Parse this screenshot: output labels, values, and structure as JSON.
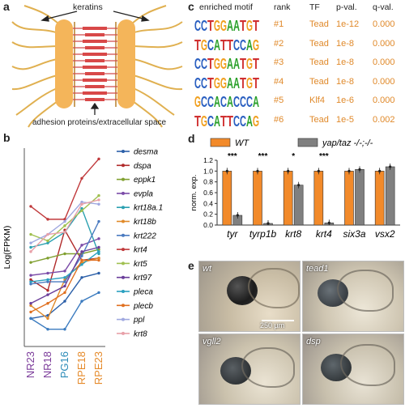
{
  "panels": {
    "a": "a",
    "b": "b",
    "c": "c",
    "d": "d",
    "e": "e"
  },
  "panel_a": {
    "keratins_label": "keratins",
    "adhesion_label": "adhesion proteins/extracellular space"
  },
  "panel_b": {
    "chart_data": {
      "type": "line",
      "ylabel": "Log(FPKM)",
      "xlabel": "",
      "categories": [
        "NR23",
        "NR18",
        "PG16",
        "RPE18",
        "RPE23"
      ],
      "category_colors": [
        "#7b3b9a",
        "#7b3b9a",
        "#2a8ab7",
        "#e58a2a",
        "#e58a2a"
      ],
      "ylim": [
        0,
        4.6
      ],
      "series": [
        {
          "name": "desma",
          "color": "#2b5fa8",
          "values": [
            0.65,
            0.72,
            1.05,
            1.6,
            1.7
          ]
        },
        {
          "name": "dspa",
          "color": "#b02a2a",
          "values": [
            1.55,
            1.3,
            2.7,
            2.0,
            2.05
          ]
        },
        {
          "name": "eppk1",
          "color": "#80a030",
          "values": [
            1.95,
            2.05,
            2.15,
            2.15,
            2.25
          ]
        },
        {
          "name": "evpla",
          "color": "#7b4ba8",
          "values": [
            1.65,
            1.7,
            1.75,
            2.35,
            2.5
          ]
        },
        {
          "name": "krt18a.1",
          "color": "#2aa0b0",
          "values": [
            2.3,
            2.4,
            2.65,
            3.2,
            2.15
          ]
        },
        {
          "name": "krt18b",
          "color": "#e08a2a",
          "values": [
            0.95,
            0.65,
            1.55,
            1.95,
            2.05
          ]
        },
        {
          "name": "krt222",
          "color": "#4a7ac0",
          "values": [
            1.45,
            1.5,
            1.5,
            2.1,
            2.9
          ]
        },
        {
          "name": "krt4",
          "color": "#c0393b",
          "values": [
            3.25,
            2.95,
            2.95,
            3.9,
            4.35
          ]
        },
        {
          "name": "krt5",
          "color": "#a0c050",
          "values": [
            2.6,
            2.45,
            2.8,
            3.15,
            3.5
          ]
        },
        {
          "name": "krt97",
          "color": "#6a3d9a",
          "values": [
            1.0,
            1.2,
            1.4,
            2.2,
            2.3
          ]
        },
        {
          "name": "pleca",
          "color": "#2aa0c0",
          "values": [
            1.5,
            1.55,
            1.6,
            1.9,
            2.2
          ]
        },
        {
          "name": "plecb",
          "color": "#e07020",
          "values": [
            0.8,
            1.0,
            1.25,
            2.0,
            2.0
          ]
        },
        {
          "name": "ppl",
          "color": "#a0a8e0",
          "values": [
            2.4,
            2.6,
            2.9,
            3.35,
            3.3
          ]
        },
        {
          "name": "krt8",
          "color": "#e8a0a8",
          "values": [
            2.2,
            2.6,
            2.65,
            3.3,
            3.4
          ]
        }
      ],
      "lower_lines": [
        {
          "color": "#3b7bbf",
          "values": [
            0.65,
            0.4,
            0.4,
            1.05,
            1.25
          ]
        }
      ]
    }
  },
  "panel_c": {
    "headers": {
      "motif": "enriched motif",
      "rank": "rank",
      "tf": "TF",
      "pval": "p-val.",
      "qval": "q-val."
    },
    "rows": [
      {
        "motif": "CCTGGAATGT",
        "rank": "#1",
        "tf": "Tead",
        "pval": "1e-12",
        "qval": "0.000"
      },
      {
        "motif": "TGCATTCCAG",
        "rank": "#2",
        "tf": "Tead",
        "pval": "1e-8",
        "qval": "0.000"
      },
      {
        "motif": "CCTGGAATGT",
        "rank": "#3",
        "tf": "Tead",
        "pval": "1e-8",
        "qval": "0.000"
      },
      {
        "motif": "CCTGGAATGT",
        "rank": "#4",
        "tf": "Tead",
        "pval": "1e-8",
        "qval": "0.000"
      },
      {
        "motif": "GCCACACCCA",
        "rank": "#5",
        "tf": "Klf4",
        "pval": "1e-6",
        "qval": "0.000"
      },
      {
        "motif": "TGCATTCCAG",
        "rank": "#6",
        "tf": "Tead",
        "pval": "1e-5",
        "qval": "0.002"
      }
    ],
    "value_color": "#e0892a"
  },
  "panel_d": {
    "chart_data": {
      "type": "bar",
      "ylabel": "norm. exp.",
      "ylim": [
        0,
        1.2
      ],
      "yticks": [
        "0.0",
        "0.2",
        "0.4",
        "0.6",
        "0.8",
        "1.0",
        "1.2"
      ],
      "categories": [
        "tyr",
        "tyrp1b",
        "krt8",
        "krt4",
        "six3a",
        "vsx2"
      ],
      "series": [
        {
          "name": "WT",
          "color": "#f28a2a",
          "values": [
            1.0,
            1.0,
            1.0,
            1.0,
            1.0,
            1.0
          ]
        },
        {
          "name": "yap/taz -/-;-/-",
          "color": "#808080",
          "values": [
            0.18,
            0.03,
            0.74,
            0.04,
            1.03,
            1.08
          ]
        }
      ],
      "significance": [
        "***",
        "***",
        "*",
        "***",
        "",
        ""
      ]
    }
  },
  "panel_e": {
    "images": [
      {
        "label": "wt"
      },
      {
        "label": "tead1"
      },
      {
        "label": "vgll2"
      },
      {
        "label": "dsp"
      }
    ],
    "scale_bar": "250 µm"
  }
}
